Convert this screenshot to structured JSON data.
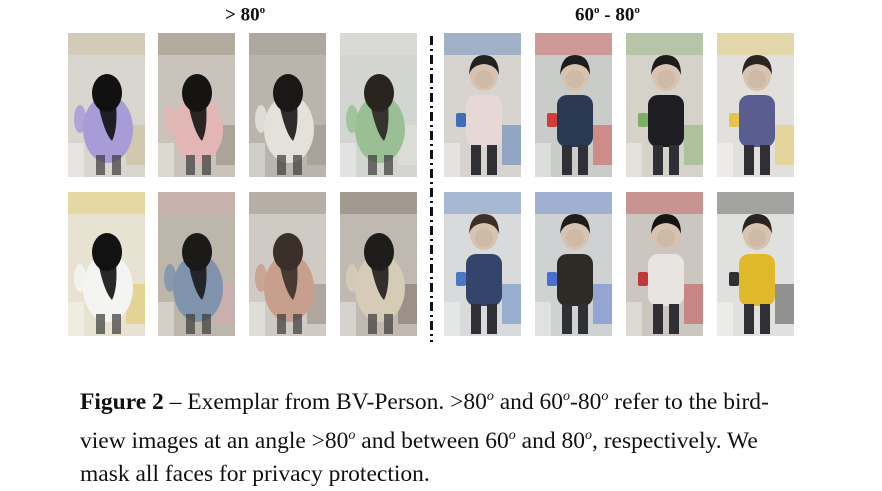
{
  "headers": {
    "left": {
      "text": "> 80",
      "sup": "o"
    },
    "right": {
      "text": "60",
      "sup1": "o",
      "mid": " - 80",
      "sup2": "o"
    }
  },
  "caption": {
    "label": "Figure 2",
    "dash": " – ",
    "t1": "Exemplar from BV-Person. ",
    "t2": ">80",
    "s1": "o",
    "t3": " and 60",
    "s2": "o",
    "t4": "-80",
    "s3": "o",
    "t5": " refer to the bird-view images at an angle ",
    "t6": ">80",
    "s4": "o",
    "t7": " and between 60",
    "s5": "o",
    "t8": " and 80",
    "s6": "o",
    "t9": ", respectively. We mask all faces for privacy protection."
  },
  "photos": [
    {
      "group": "above-80",
      "row": 1,
      "bg": "#d9d5cf",
      "hair": "#111111",
      "top": "#a79bd8",
      "accent": "#c8b98a"
    },
    {
      "group": "above-80",
      "row": 1,
      "bg": "#c9c3bb",
      "hair": "#161412",
      "top": "#e2b6b4",
      "accent": "#8c7f70"
    },
    {
      "group": "above-80",
      "row": 1,
      "bg": "#b9b4ac",
      "hair": "#1a1817",
      "top": "#e4e0da",
      "accent": "#9a8f84"
    },
    {
      "group": "above-80",
      "row": 1,
      "bg": "#d2d5d0",
      "hair": "#2a241f",
      "top": "#9bbf95",
      "accent": "#e8e6e0"
    },
    {
      "group": "above-80",
      "row": 2,
      "bg": "#e7e2d2",
      "hair": "#121212",
      "top": "#f4f4f2",
      "accent": "#e0c24a"
    },
    {
      "group": "above-80",
      "row": 2,
      "bg": "#bdb7ab",
      "hair": "#1b1a19",
      "top": "#7f93ad",
      "accent": "#d9a7b1"
    },
    {
      "group": "above-80",
      "row": 2,
      "bg": "#cfcac3",
      "hair": "#3a2f29",
      "top": "#c79f8c",
      "accent": "#8a7b70"
    },
    {
      "group": "above-80",
      "row": 2,
      "bg": "#bfb9b1",
      "hair": "#1f1d1c",
      "top": "#d6cbb6",
      "accent": "#6e6257"
    },
    {
      "group": "60-80",
      "row": 1,
      "bg": "#d7d4cf",
      "hair": "#222222",
      "top": "#e7d7d6",
      "accent": "#3d6fb6"
    },
    {
      "group": "60-80",
      "row": 1,
      "bg": "#c9ccc9",
      "hair": "#1d1d1d",
      "top": "#2b3a52",
      "accent": "#d43b3b"
    },
    {
      "group": "60-80",
      "row": 1,
      "bg": "#d5d2c9",
      "hair": "#1b1b1b",
      "top": "#1e1e22",
      "accent": "#7fae6a"
    },
    {
      "group": "60-80",
      "row": 1,
      "bg": "#e2e0dd",
      "hair": "#2b2420",
      "top": "#5a5d8f",
      "accent": "#e6c34a"
    },
    {
      "group": "60-80",
      "row": 2,
      "bg": "#d8dadb",
      "hair": "#3b2f27",
      "top": "#34456b",
      "accent": "#4a78c2"
    },
    {
      "group": "60-80",
      "row": 2,
      "bg": "#cfd2d2",
      "hair": "#1f1c1a",
      "top": "#2e2b27",
      "accent": "#4b6fd0"
    },
    {
      "group": "60-80",
      "row": 2,
      "bg": "#cbc6c0",
      "hair": "#151515",
      "top": "#e8e4e1",
      "accent": "#c2373d"
    },
    {
      "group": "60-80",
      "row": 2,
      "bg": "#e0e0de",
      "hair": "#2a2420",
      "top": "#e0b92a",
      "accent": "#303030"
    }
  ]
}
